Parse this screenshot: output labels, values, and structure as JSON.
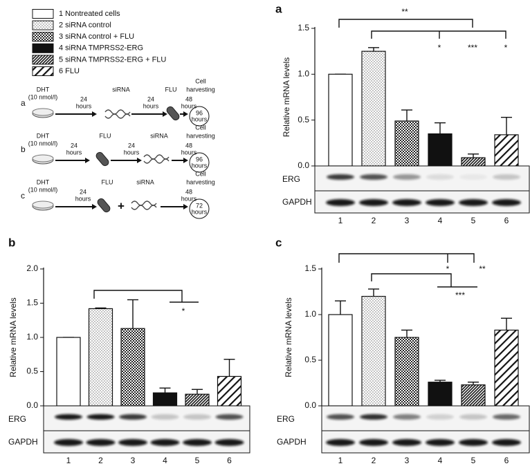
{
  "legend": {
    "items": [
      "1 Nontreated cells",
      "2 siRNA control",
      "3 siRNA control + FLU",
      "4 siRNA TMPRSS2-ERG",
      "5 siRNA TMPRSS2-ERG + FLU",
      "6 FLU"
    ]
  },
  "schematic": {
    "rows": [
      {
        "label": "a",
        "texts": [
          "DHT",
          "(10 nmol/l)",
          "24",
          "hours",
          "siRNA",
          "24",
          "hours",
          "FLU",
          "48",
          "hours",
          "Cell",
          "harvesting",
          "96",
          "hours"
        ]
      },
      {
        "label": "b",
        "texts": [
          "DHT",
          "(10 nmol/l)",
          "24",
          "hours",
          "FLU",
          "24",
          "hours",
          "siRNA",
          "48",
          "hours",
          "Cell",
          "harvesting",
          "96",
          "hours"
        ]
      },
      {
        "label": "c",
        "texts": [
          "DHT",
          "(10 nmol/l)",
          "24",
          "hours",
          "FLU",
          "+",
          "siRNA",
          "48",
          "hours",
          "Cell",
          "harvesting",
          "72",
          "hours"
        ]
      }
    ]
  },
  "chart_data": [
    {
      "type": "bar",
      "panel": "a",
      "y_label": "Relative mRNA levels",
      "categories": [
        "1",
        "2",
        "3",
        "4",
        "5",
        "6"
      ],
      "values": [
        1.0,
        1.25,
        0.49,
        0.35,
        0.09,
        0.34
      ],
      "errors": [
        0,
        0.04,
        0.12,
        0.12,
        0.04,
        0.19
      ],
      "ylim": [
        0,
        1.5
      ],
      "yticks": [
        {
          "value": 0,
          "label": "0.0"
        },
        0.5,
        {
          "value": 1,
          "label": "1.0"
        },
        1.5
      ],
      "annotations": [
        "**",
        "*",
        "***",
        "*"
      ],
      "blot_labels": [
        "ERG",
        "GAPDH"
      ]
    },
    {
      "type": "bar",
      "panel": "b",
      "y_label": "Relative mRNA levels",
      "categories": [
        "1",
        "2",
        "3",
        "4",
        "5",
        "6"
      ],
      "values": [
        1.0,
        1.42,
        1.13,
        0.19,
        0.17,
        0.43
      ],
      "errors": [
        0,
        0.01,
        0.42,
        0.07,
        0.07,
        0.25
      ],
      "ylim": [
        0,
        2
      ],
      "yticks": [
        {
          "value": 0,
          "label": "0.0"
        },
        0.5,
        {
          "value": 1,
          "label": "1.0"
        },
        1.5,
        {
          "value": 2,
          "label": "2.0"
        }
      ],
      "annotations": [
        "*"
      ],
      "blot_labels": [
        "ERG",
        "GAPDH"
      ]
    },
    {
      "type": "bar",
      "panel": "c",
      "y_label": "Relative mRNA levels",
      "categories": [
        "1",
        "2",
        "3",
        "4",
        "5",
        "6"
      ],
      "values": [
        1.0,
        1.2,
        0.75,
        0.26,
        0.23,
        0.83
      ],
      "errors": [
        0.15,
        0.08,
        0.08,
        0.02,
        0.03,
        0.13
      ],
      "ylim": [
        0,
        1.5
      ],
      "yticks": [
        {
          "value": 0,
          "label": "0.0"
        },
        0.5,
        {
          "value": 1,
          "label": "1.0"
        },
        1.5
      ],
      "annotations": [
        "*",
        "**",
        "***"
      ],
      "blot_labels": [
        "ERG",
        "GAPDH"
      ]
    }
  ]
}
